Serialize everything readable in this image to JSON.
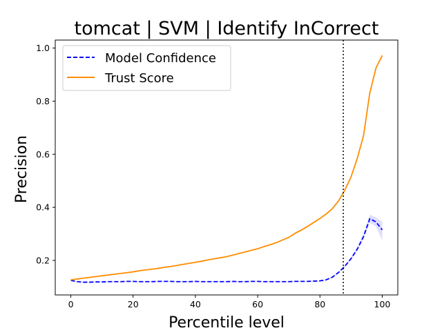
{
  "chart_data": {
    "type": "line",
    "title": "tomcat | SVM | Identify InCorrect",
    "xlabel": "Percentile level",
    "ylabel": "Precision",
    "xlim": [
      -5,
      105
    ],
    "ylim": [
      0.07,
      1.03
    ],
    "xticks": [
      0,
      20,
      40,
      60,
      80,
      100
    ],
    "yticks": [
      0.2,
      0.4,
      0.6,
      0.8,
      1.0
    ],
    "xtick_labels": [
      "0",
      "20",
      "40",
      "60",
      "80",
      "100"
    ],
    "ytick_labels": [
      "0.2",
      "0.4",
      "0.6",
      "0.8",
      "1.0"
    ],
    "grid": false,
    "legend_position": "top-left",
    "vline": {
      "x": 87.5,
      "style": "dotted",
      "color": "#000000"
    },
    "series": [
      {
        "name": "Model Confidence",
        "color": "#0000ff",
        "style": "dashed",
        "band_color": "#c8c8ff",
        "x": [
          0,
          2,
          4,
          6,
          8,
          10,
          12,
          14,
          16,
          18,
          20,
          22,
          24,
          26,
          28,
          30,
          32,
          34,
          36,
          38,
          40,
          42,
          44,
          46,
          48,
          50,
          52,
          54,
          56,
          58,
          60,
          62,
          64,
          66,
          68,
          70,
          72,
          74,
          76,
          78,
          80,
          82,
          84,
          86,
          88,
          90,
          92,
          94,
          96,
          98,
          100
        ],
        "values": [
          0.125,
          0.12,
          0.118,
          0.118,
          0.119,
          0.119,
          0.12,
          0.12,
          0.12,
          0.121,
          0.121,
          0.12,
          0.12,
          0.12,
          0.121,
          0.121,
          0.121,
          0.12,
          0.12,
          0.12,
          0.121,
          0.12,
          0.12,
          0.12,
          0.12,
          0.12,
          0.121,
          0.12,
          0.12,
          0.121,
          0.121,
          0.12,
          0.12,
          0.12,
          0.12,
          0.12,
          0.121,
          0.121,
          0.121,
          0.122,
          0.123,
          0.127,
          0.137,
          0.155,
          0.178,
          0.207,
          0.243,
          0.29,
          0.357,
          0.345,
          0.315
        ],
        "band_upper": [
          0.127,
          0.122,
          0.12,
          0.12,
          0.121,
          0.121,
          0.122,
          0.122,
          0.122,
          0.123,
          0.123,
          0.122,
          0.122,
          0.122,
          0.123,
          0.123,
          0.123,
          0.122,
          0.122,
          0.122,
          0.123,
          0.122,
          0.122,
          0.122,
          0.122,
          0.122,
          0.123,
          0.122,
          0.122,
          0.123,
          0.123,
          0.122,
          0.122,
          0.122,
          0.122,
          0.122,
          0.123,
          0.123,
          0.123,
          0.124,
          0.125,
          0.13,
          0.14,
          0.158,
          0.182,
          0.212,
          0.25,
          0.3,
          0.372,
          0.362,
          0.345
        ],
        "band_lower": [
          0.123,
          0.118,
          0.116,
          0.116,
          0.117,
          0.117,
          0.118,
          0.118,
          0.118,
          0.119,
          0.119,
          0.118,
          0.118,
          0.118,
          0.119,
          0.119,
          0.119,
          0.118,
          0.118,
          0.118,
          0.119,
          0.118,
          0.118,
          0.118,
          0.118,
          0.118,
          0.119,
          0.118,
          0.118,
          0.119,
          0.119,
          0.118,
          0.118,
          0.118,
          0.118,
          0.118,
          0.119,
          0.119,
          0.119,
          0.12,
          0.121,
          0.124,
          0.134,
          0.152,
          0.174,
          0.202,
          0.236,
          0.28,
          0.342,
          0.328,
          0.275
        ]
      },
      {
        "name": "Trust Score",
        "color": "#ff8c00",
        "style": "solid",
        "band_color": "#ffd9a8",
        "x": [
          0,
          2,
          4,
          6,
          8,
          10,
          12,
          14,
          16,
          18,
          20,
          22,
          24,
          26,
          28,
          30,
          32,
          34,
          36,
          38,
          40,
          42,
          44,
          46,
          48,
          50,
          52,
          54,
          56,
          58,
          60,
          62,
          64,
          66,
          68,
          70,
          72,
          74,
          76,
          78,
          80,
          82,
          84,
          86,
          88,
          90,
          92,
          94,
          96,
          98,
          100
        ],
        "values": [
          0.127,
          0.13,
          0.133,
          0.136,
          0.139,
          0.142,
          0.145,
          0.148,
          0.151,
          0.154,
          0.157,
          0.161,
          0.164,
          0.167,
          0.17,
          0.174,
          0.177,
          0.181,
          0.185,
          0.189,
          0.193,
          0.197,
          0.202,
          0.206,
          0.21,
          0.214,
          0.22,
          0.226,
          0.232,
          0.238,
          0.244,
          0.252,
          0.259,
          0.267,
          0.277,
          0.287,
          0.302,
          0.314,
          0.328,
          0.343,
          0.358,
          0.375,
          0.395,
          0.425,
          0.465,
          0.515,
          0.585,
          0.67,
          0.83,
          0.925,
          0.972
        ],
        "band_upper": [
          0.129,
          0.132,
          0.135,
          0.138,
          0.141,
          0.144,
          0.147,
          0.15,
          0.153,
          0.156,
          0.159,
          0.163,
          0.166,
          0.169,
          0.172,
          0.176,
          0.179,
          0.183,
          0.187,
          0.191,
          0.195,
          0.199,
          0.204,
          0.208,
          0.212,
          0.216,
          0.222,
          0.228,
          0.234,
          0.24,
          0.246,
          0.254,
          0.261,
          0.269,
          0.279,
          0.289,
          0.305,
          0.317,
          0.331,
          0.346,
          0.361,
          0.378,
          0.398,
          0.428,
          0.469,
          0.52,
          0.59,
          0.676,
          0.836,
          0.93,
          0.976
        ],
        "band_lower": [
          0.125,
          0.128,
          0.131,
          0.134,
          0.137,
          0.14,
          0.143,
          0.146,
          0.149,
          0.152,
          0.155,
          0.159,
          0.162,
          0.165,
          0.168,
          0.172,
          0.175,
          0.179,
          0.183,
          0.187,
          0.191,
          0.195,
          0.2,
          0.204,
          0.208,
          0.212,
          0.218,
          0.224,
          0.23,
          0.236,
          0.242,
          0.25,
          0.257,
          0.265,
          0.275,
          0.285,
          0.299,
          0.311,
          0.325,
          0.34,
          0.355,
          0.372,
          0.392,
          0.422,
          0.461,
          0.51,
          0.58,
          0.664,
          0.824,
          0.92,
          0.968
        ]
      }
    ]
  }
}
